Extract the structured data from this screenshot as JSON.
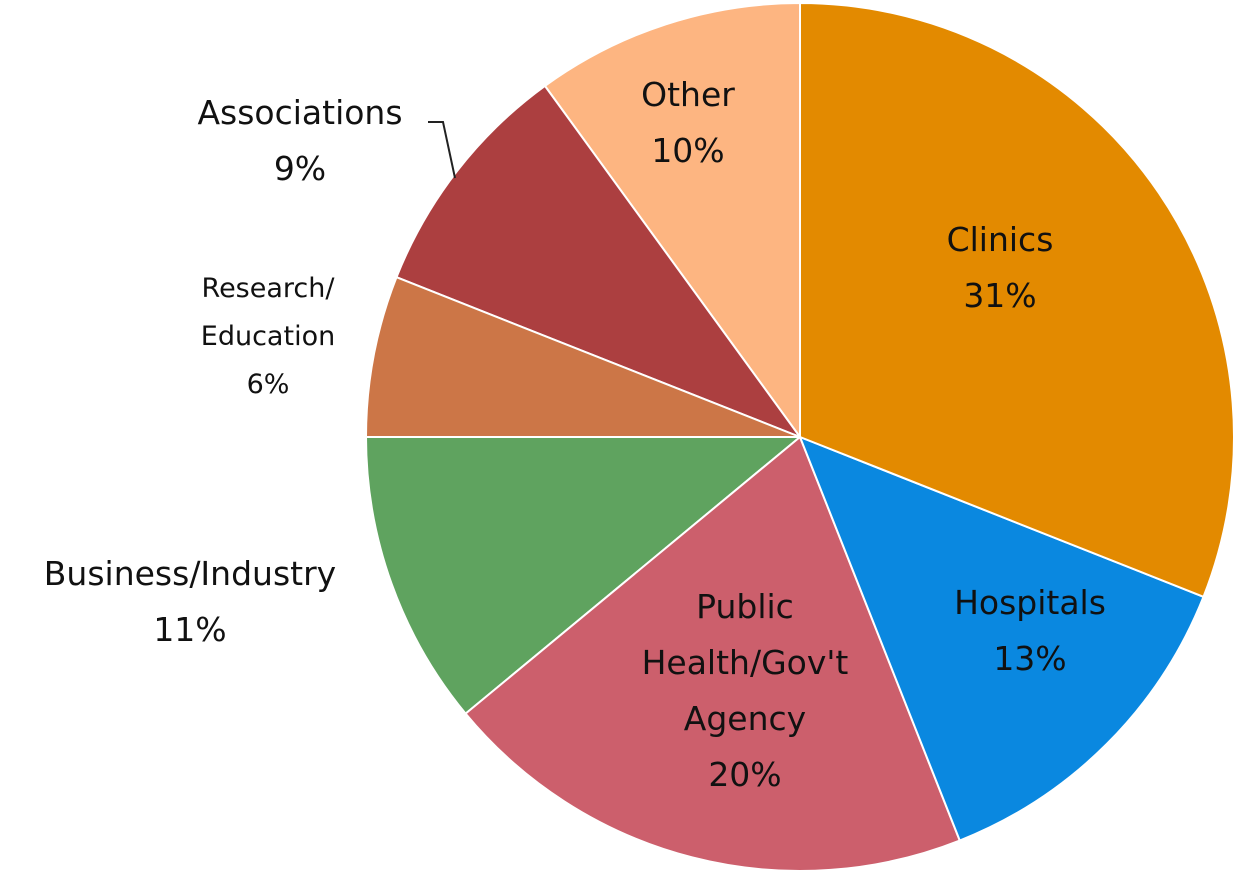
{
  "chart_data": {
    "type": "pie",
    "categories": [
      "Clinics",
      "Hospitals",
      "Public Health/Gov't Agency",
      "Business/Industry",
      "Research/ Education",
      "Associations",
      "Other"
    ],
    "values": [
      31,
      13,
      20,
      11,
      6,
      9,
      10
    ],
    "value_labels": [
      "31%",
      "13%",
      "20%",
      "11%",
      "6%",
      "9%",
      "10%"
    ],
    "colors": [
      "#e38a00",
      "#0a88e0",
      "#cc5f6c",
      "#5fa35f",
      "#cc7647",
      "#ac3f40",
      "#fdb581"
    ]
  }
}
